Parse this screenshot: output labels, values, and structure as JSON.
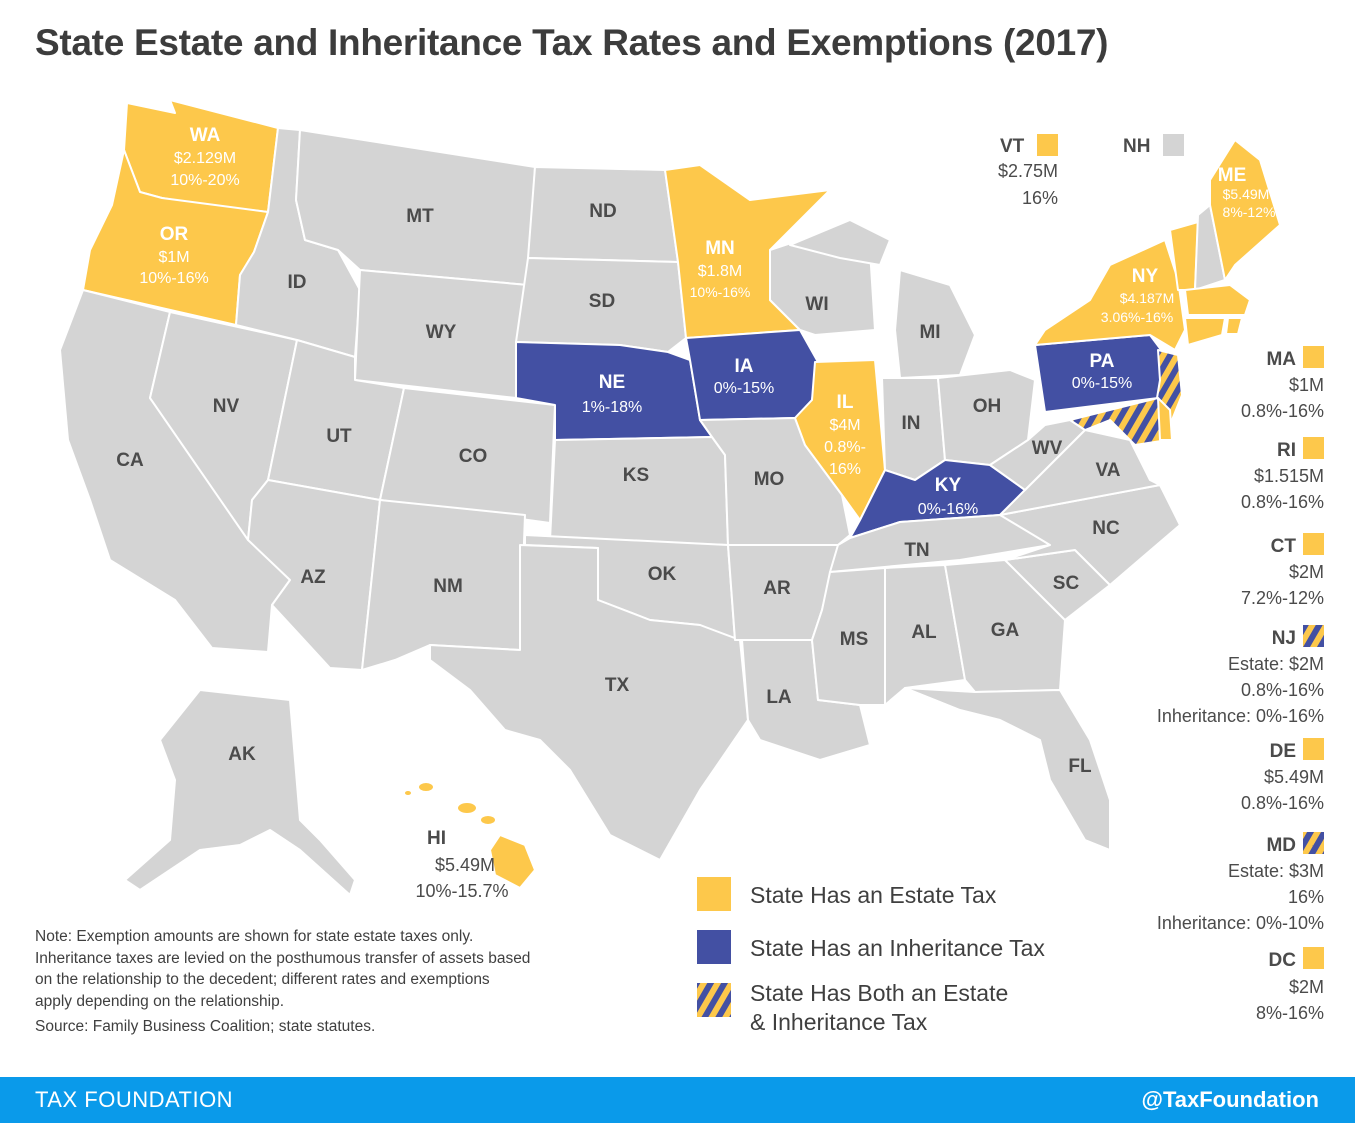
{
  "title": "State Estate and Inheritance Tax Rates and Exemptions (2017)",
  "colors": {
    "estate": "#fdc84b",
    "inheritance": "#4350a3",
    "none": "#d4d4d4",
    "footer": "#0a9aea"
  },
  "states": {
    "WA": {
      "abbr": "WA",
      "exemption": "$2.129M",
      "rate": "10%-20%"
    },
    "OR": {
      "abbr": "OR",
      "exemption": "$1M",
      "rate": "10%-16%"
    },
    "MN": {
      "abbr": "MN",
      "exemption": "$1.8M",
      "rate": "10%-16%"
    },
    "NE": {
      "abbr": "NE",
      "rate": "1%-18%"
    },
    "IA": {
      "abbr": "IA",
      "rate": "0%-15%"
    },
    "IL": {
      "abbr": "IL",
      "exemption": "$4M",
      "rate_line1": "0.8%-",
      "rate_line2": "16%"
    },
    "KY": {
      "abbr": "KY",
      "rate": "0%-16%"
    },
    "PA": {
      "abbr": "PA",
      "rate": "0%-15%"
    },
    "NY": {
      "abbr": "NY",
      "exemption": "$4.187M",
      "rate": "3.06%-16%"
    },
    "ME": {
      "abbr": "ME",
      "exemption": "$5.49M",
      "rate": "8%-12%"
    },
    "VT": {
      "abbr": "VT",
      "exemption": "$2.75M",
      "rate": "16%"
    },
    "NH": {
      "abbr": "NH"
    },
    "HI": {
      "abbr": "HI",
      "exemption": "$5.49M",
      "rate": "10%-15.7%"
    },
    "MA": {
      "abbr": "MA",
      "exemption": "$1M",
      "rate": "0.8%-16%"
    },
    "RI": {
      "abbr": "RI",
      "exemption": "$1.515M",
      "rate": "0.8%-16%"
    },
    "CT": {
      "abbr": "CT",
      "exemption": "$2M",
      "rate": "7.2%-12%"
    },
    "NJ": {
      "abbr": "NJ",
      "estate": "Estate: $2M",
      "estate_rate": "0.8%-16%",
      "inheritance": "Inheritance: 0%-16%"
    },
    "DE": {
      "abbr": "DE",
      "exemption": "$5.49M",
      "rate": "0.8%-16%"
    },
    "MD": {
      "abbr": "MD",
      "estate": "Estate: $3M",
      "estate_rate": "16%",
      "inheritance": "Inheritance: 0%-10%"
    },
    "DC": {
      "abbr": "DC",
      "exemption": "$2M",
      "rate": "8%-16%"
    },
    "MT": {
      "abbr": "MT"
    },
    "ND": {
      "abbr": "ND"
    },
    "SD": {
      "abbr": "SD"
    },
    "ID": {
      "abbr": "ID"
    },
    "WY": {
      "abbr": "WY"
    },
    "NV": {
      "abbr": "NV"
    },
    "UT": {
      "abbr": "UT"
    },
    "CO": {
      "abbr": "CO"
    },
    "CA": {
      "abbr": "CA"
    },
    "AZ": {
      "abbr": "AZ"
    },
    "NM": {
      "abbr": "NM"
    },
    "KS": {
      "abbr": "KS"
    },
    "OK": {
      "abbr": "OK"
    },
    "TX": {
      "abbr": "TX"
    },
    "MO": {
      "abbr": "MO"
    },
    "AR": {
      "abbr": "AR"
    },
    "LA": {
      "abbr": "LA"
    },
    "WI": {
      "abbr": "WI"
    },
    "MI": {
      "abbr": "MI"
    },
    "IN": {
      "abbr": "IN"
    },
    "OH": {
      "abbr": "OH"
    },
    "WV": {
      "abbr": "WV"
    },
    "VA": {
      "abbr": "VA"
    },
    "TN": {
      "abbr": "TN"
    },
    "NC": {
      "abbr": "NC"
    },
    "SC": {
      "abbr": "SC"
    },
    "MS": {
      "abbr": "MS"
    },
    "AL": {
      "abbr": "AL"
    },
    "GA": {
      "abbr": "GA"
    },
    "FL": {
      "abbr": "FL"
    },
    "AK": {
      "abbr": "AK"
    }
  },
  "legend": {
    "estate": "State Has an Estate Tax",
    "inheritance": "State Has an Inheritance Tax",
    "both_line1": "State Has Both an Estate",
    "both_line2": "& Inheritance Tax"
  },
  "note": {
    "line1": "Note: Exemption amounts are shown for state estate taxes only.",
    "line2": "Inheritance taxes are levied on the posthumous transfer of assets based",
    "line3": "on the relationship to the decedent; different rates and exemptions",
    "line4": "apply depending on the relationship.",
    "source": "Source: Family Business Coalition; state statutes."
  },
  "footer": {
    "brand": "TAX FOUNDATION",
    "handle": "@TaxFoundation"
  }
}
